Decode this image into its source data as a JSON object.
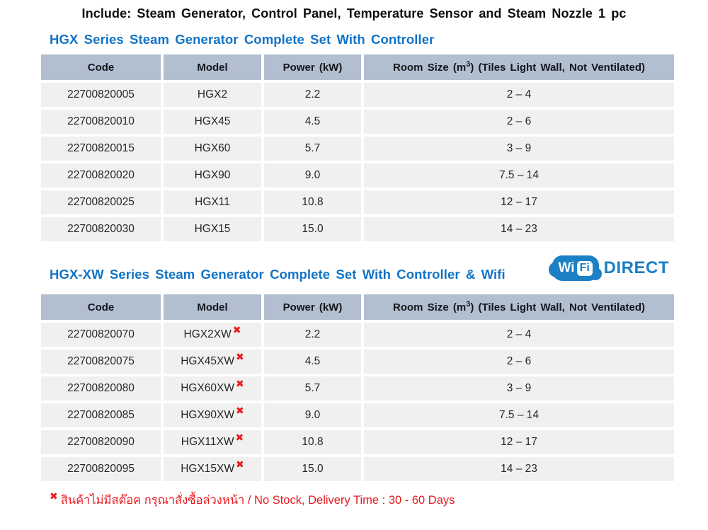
{
  "include_line": "Include: Steam Generator, Control Panel, Temperature Sensor and Steam Nozzle 1 pc",
  "footnote": {
    "marker": "✖",
    "text": "สินค้าไม่มีสต๊อค กรุณาสั่งซื้อล่วงหน้า / No Stock, Delivery Time : 30 - 60 Days"
  },
  "wifi_logo": {
    "wi": "Wi",
    "fi": "Fi",
    "direct": "DIRECT"
  },
  "colors": {
    "heading_blue": "#1173c5",
    "table_header_bg": "#b1bfd0",
    "row_bg": "#f0f0ef",
    "no_stock_red": "#e8191f",
    "logo_blue": "#1b80c4"
  },
  "tables": [
    {
      "title": "HGX Series Steam Generator Complete Set With Controller",
      "columns": {
        "code": "Code",
        "model": "Model",
        "power": "Power (kW)",
        "room_pre": "Room Size (m",
        "room_sup": "3",
        "room_post": ") (Tiles Light Wall, Not Ventilated)"
      },
      "rows": [
        {
          "code": "22700820005",
          "model": "HGX2",
          "no_stock": false,
          "power": "2.2",
          "room": "2 – 4"
        },
        {
          "code": "22700820010",
          "model": "HGX45",
          "no_stock": false,
          "power": "4.5",
          "room": "2 – 6"
        },
        {
          "code": "22700820015",
          "model": "HGX60",
          "no_stock": false,
          "power": "5.7",
          "room": "3 – 9"
        },
        {
          "code": "22700820020",
          "model": "HGX90",
          "no_stock": false,
          "power": "9.0",
          "room": "7.5 – 14"
        },
        {
          "code": "22700820025",
          "model": "HGX11",
          "no_stock": false,
          "power": "10.8",
          "room": "12 – 17"
        },
        {
          "code": "22700820030",
          "model": "HGX15",
          "no_stock": false,
          "power": "15.0",
          "room": "14 – 23"
        }
      ]
    },
    {
      "title": "HGX-XW Series Steam Generator Complete Set With Controller & Wifi",
      "columns": {
        "code": "Code",
        "model": "Model",
        "power": "Power (kW)",
        "room_pre": "Room Size (m",
        "room_sup": "3",
        "room_post": ") (Tiles Light Wall, Not Ventilated)"
      },
      "rows": [
        {
          "code": "22700820070",
          "model": "HGX2XW",
          "no_stock": true,
          "power": "2.2",
          "room": "2 – 4"
        },
        {
          "code": "22700820075",
          "model": "HGX45XW",
          "no_stock": true,
          "power": "4.5",
          "room": "2 – 6"
        },
        {
          "code": "22700820080",
          "model": "HGX60XW",
          "no_stock": true,
          "power": "5.7",
          "room": "3 – 9"
        },
        {
          "code": "22700820085",
          "model": "HGX90XW",
          "no_stock": true,
          "power": "9.0",
          "room": "7.5 – 14"
        },
        {
          "code": "22700820090",
          "model": "HGX11XW",
          "no_stock": true,
          "power": "10.8",
          "room": "12 – 17"
        },
        {
          "code": "22700820095",
          "model": "HGX15XW",
          "no_stock": true,
          "power": "15.0",
          "room": "14 – 23"
        }
      ]
    }
  ]
}
